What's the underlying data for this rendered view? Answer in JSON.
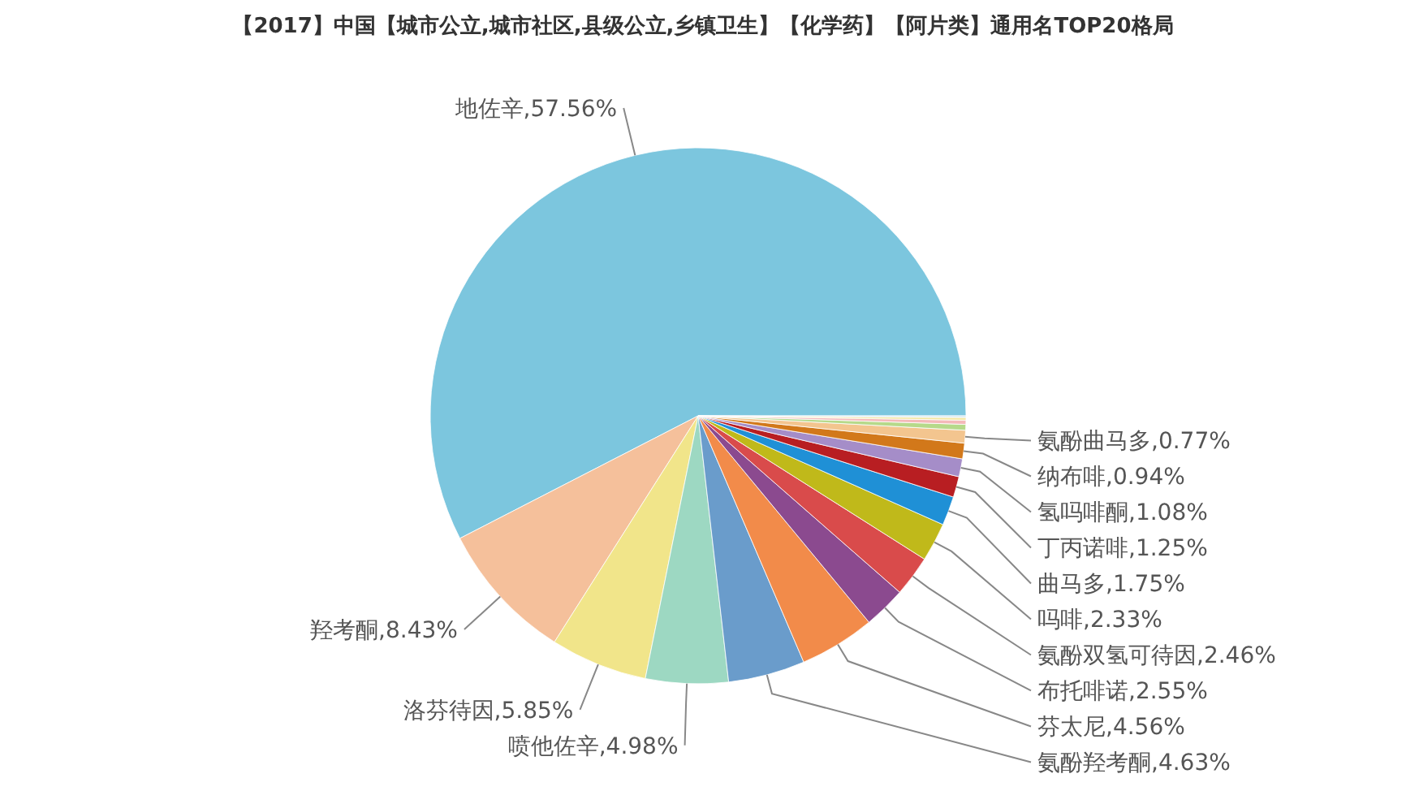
{
  "chart_data": {
    "type": "pie",
    "title": "【2017】中国【城市公立,城市社区,县级公立,乡镇卫生】【化学药】【阿片类】通用名TOP20格局",
    "categories": [
      "地佐辛",
      "羟考酮",
      "洛芬待因",
      "喷他佐辛",
      "氨酚羟考酮",
      "芬太尼",
      "布托啡诺",
      "氨酚双氢可待因",
      "吗啡",
      "曲马多",
      "丁丙诺啡",
      "氢吗啡酮",
      "纳布啡",
      "氨酚曲马多",
      null,
      null,
      null,
      null
    ],
    "values": [
      57.56,
      8.43,
      5.85,
      4.98,
      4.63,
      4.56,
      2.55,
      2.46,
      2.33,
      1.75,
      1.25,
      1.08,
      0.94,
      0.77,
      0.35,
      0.25,
      0.16,
      0.1
    ],
    "value_labels": [
      "57.56%",
      "8.43%",
      "5.85%",
      "4.98%",
      "4.63%",
      "4.56%",
      "2.55%",
      "2.46%",
      "2.33%",
      "1.75%",
      "1.25%",
      "1.08%",
      "0.94%",
      "0.77%",
      null,
      null,
      null,
      null
    ],
    "colors": [
      "#7cc6de",
      "#f5c09b",
      "#f1e58a",
      "#9dd8c2",
      "#6a9ccb",
      "#f28b4a",
      "#8b4a8f",
      "#d94b4b",
      "#c0b91a",
      "#1f90d6",
      "#b81e22",
      "#a58dc8",
      "#d2781a",
      "#f3c58f",
      "#b6d98a",
      "#f4b9b9",
      "#f3e6a0",
      "#cfe6f0"
    ]
  }
}
